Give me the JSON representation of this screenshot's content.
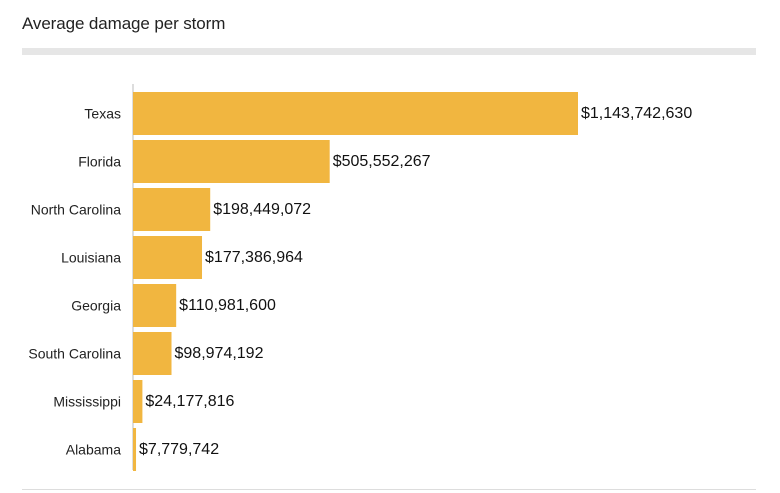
{
  "chart_data": {
    "type": "bar",
    "orientation": "horizontal",
    "title": "Average damage per storm",
    "xlabel": "",
    "ylabel": "",
    "bar_color": "#f1b640",
    "axis_color": "#bbbbbb",
    "categories": [
      "Texas",
      "Florida",
      "North Carolina",
      "Louisiana",
      "Georgia",
      "South Carolina",
      "Mississippi",
      "Alabama"
    ],
    "values": [
      1143742630,
      505552267,
      198449072,
      177386964,
      110981600,
      98974192,
      24177816,
      7779742
    ],
    "value_labels": [
      "$1,143,742,630",
      "$505,552,267",
      "$198,449,072",
      "$177,386,964",
      "$110,981,600",
      "$98,974,192",
      "$24,177,816",
      "$7,779,742"
    ],
    "xlim": [
      0,
      1143742630
    ],
    "grid": false,
    "legend": "none"
  }
}
